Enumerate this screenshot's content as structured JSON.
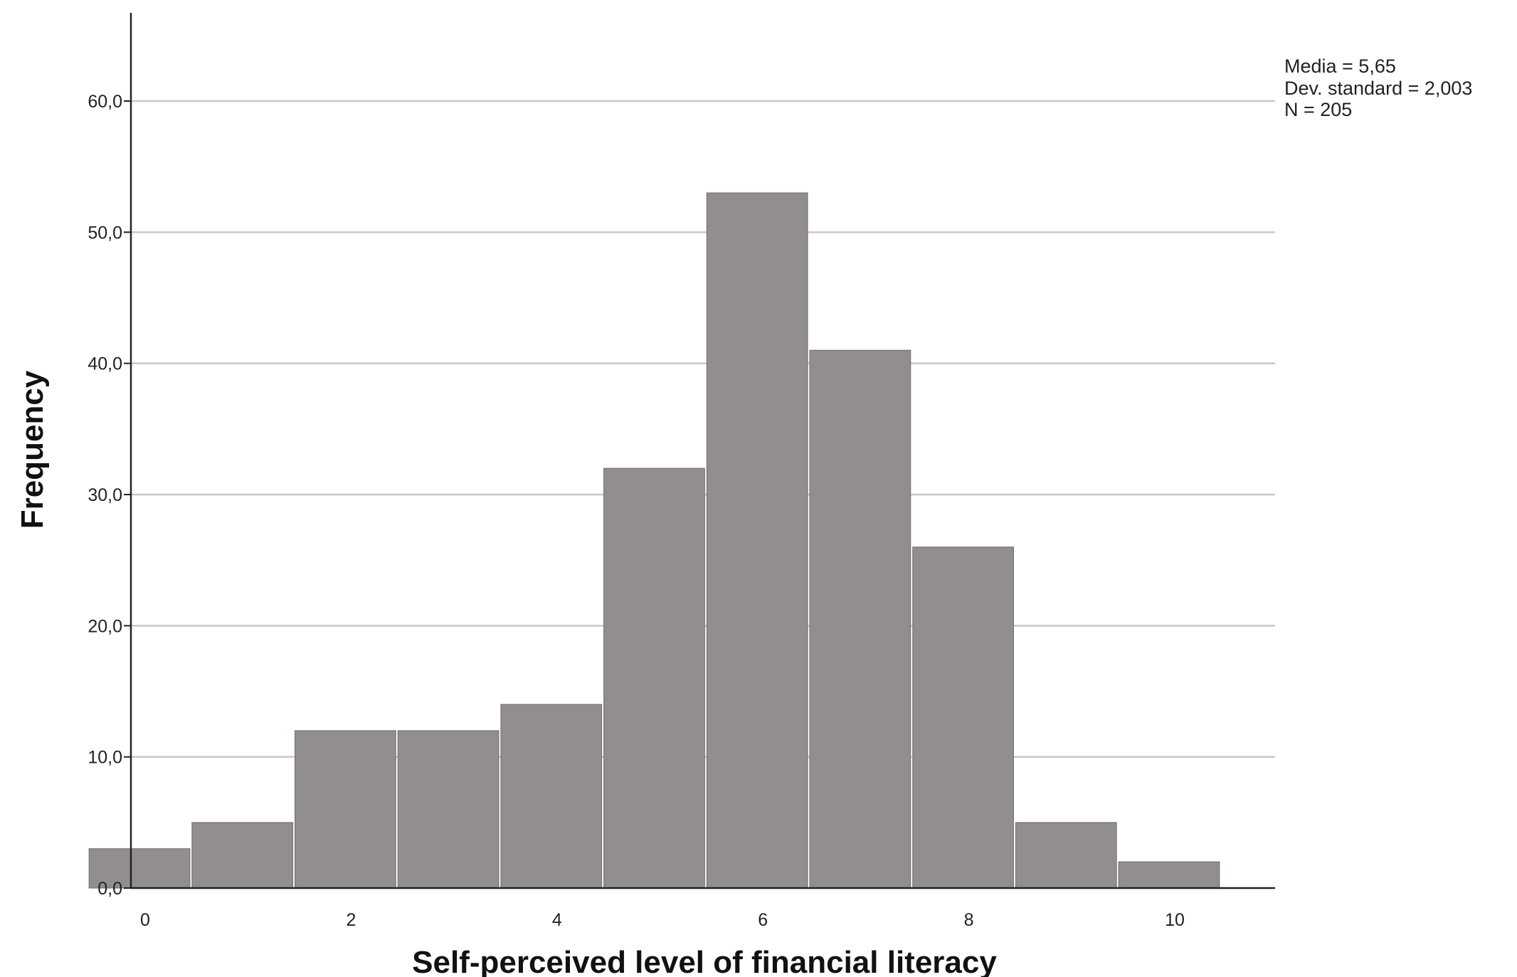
{
  "chart_data": {
    "type": "bar",
    "subtype": "histogram",
    "x": [
      0,
      1,
      2,
      3,
      4,
      5,
      6,
      7,
      8,
      9,
      10
    ],
    "values": [
      3,
      5,
      12,
      12,
      14,
      32,
      53,
      41,
      26,
      5,
      2
    ],
    "xlabel": "Self-perceived level of financial literacy",
    "ylabel": "Frequency",
    "xticks": [
      "0",
      "2",
      "4",
      "6",
      "8",
      "10"
    ],
    "yticks": [
      "0,0",
      "10,0",
      "20,0",
      "30,0",
      "40,0",
      "50,0",
      "60,0"
    ],
    "ylim": [
      0,
      67
    ],
    "xlim": [
      -0.55,
      10.55
    ],
    "grid": "horizontal",
    "bar_color": "#918e8d",
    "grid_color": "#c8c8c8",
    "stats": [
      "Media = 5,65",
      "Dev. standard = 2,003",
      "N = 205"
    ]
  }
}
